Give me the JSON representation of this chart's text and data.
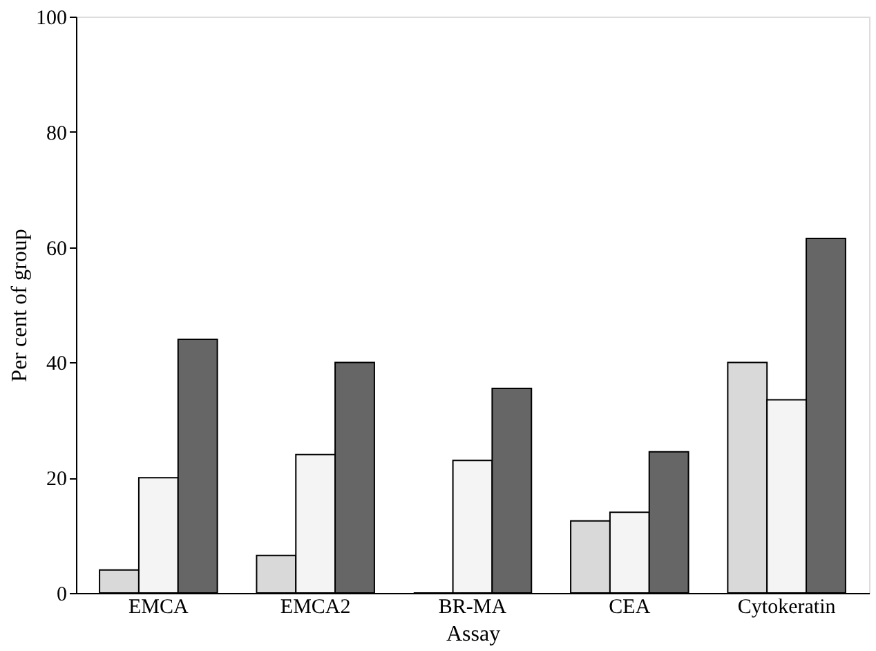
{
  "chart_data": {
    "type": "bar",
    "xlabel": "Assay",
    "ylabel": "Per cent of group",
    "categories": [
      "EMCA",
      "EMCA2",
      "BR-MA",
      "CEA",
      "Cytokeratin"
    ],
    "series": [
      {
        "color": "#d9d9d9",
        "values": [
          4,
          6.5,
          0,
          12.5,
          40
        ]
      },
      {
        "color": "#f4f4f4",
        "values": [
          20,
          24,
          23,
          14,
          33.5
        ]
      },
      {
        "color": "#666666",
        "values": [
          44,
          40,
          35.5,
          24.5,
          61.5
        ]
      }
    ],
    "ylim": [
      0,
      100
    ],
    "yticks": [
      0,
      20,
      40,
      60,
      80,
      100
    ],
    "grid": false,
    "legend": false
  }
}
